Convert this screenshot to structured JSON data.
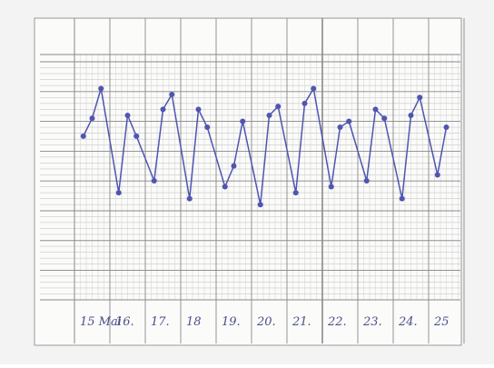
{
  "chart_data": {
    "type": "line",
    "day_labels": [
      "15 Mai",
      "16.",
      "17.",
      "18",
      "19.",
      "20.",
      "21.",
      "22.",
      "23.",
      "24.",
      "25"
    ],
    "xlim": [
      15,
      26
    ],
    "ylim": [
      0,
      8
    ],
    "series": [
      {
        "color": "#4f55b0",
        "x": [
          15.25,
          15.5,
          15.75,
          16.25,
          16.5,
          16.75,
          17.25,
          17.5,
          17.75,
          18.25,
          18.5,
          18.75,
          19.25,
          19.5,
          19.75,
          20.25,
          20.5,
          20.75,
          21.25,
          21.5,
          21.75,
          22.25,
          22.5,
          22.75,
          23.25,
          23.5,
          23.75,
          24.25,
          24.5,
          24.75,
          25.25,
          25.5
        ],
        "values": [
          5.5,
          6.1,
          7.1,
          3.6,
          6.2,
          5.5,
          4.0,
          6.4,
          6.9,
          3.4,
          6.4,
          5.8,
          3.8,
          4.5,
          6.0,
          3.2,
          6.2,
          6.5,
          3.6,
          6.6,
          7.1,
          3.8,
          5.8,
          6.0,
          4.0,
          6.4,
          6.1,
          3.4,
          6.2,
          6.8,
          4.2,
          5.8
        ]
      }
    ]
  }
}
